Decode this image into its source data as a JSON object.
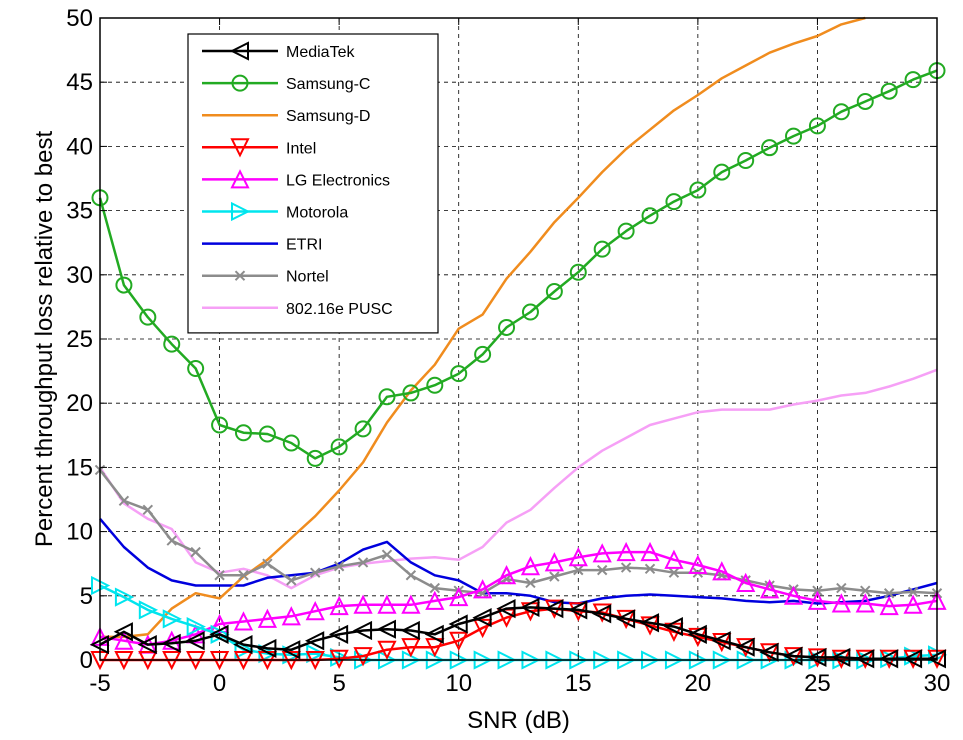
{
  "chart_data": {
    "type": "line",
    "title": "",
    "xlabel": "SNR (dB)",
    "ylabel": "Percent throughput loss relative to best",
    "xlim": [
      -5,
      30
    ],
    "ylim": [
      0,
      50
    ],
    "xticks": [
      -5,
      0,
      5,
      10,
      15,
      20,
      25,
      30
    ],
    "yticks": [
      0,
      5,
      10,
      15,
      20,
      25,
      30,
      35,
      40,
      45,
      50
    ],
    "grid": true,
    "legend_position": "top-left",
    "series": [
      {
        "name": "MediaTek",
        "color": "#000000",
        "marker": "triangle-left",
        "x": [
          -5,
          -4,
          -3,
          -2,
          -1,
          0,
          1,
          2,
          3,
          4,
          5,
          6,
          7,
          8,
          9,
          10,
          11,
          12,
          13,
          14,
          15,
          16,
          17,
          18,
          19,
          20,
          21,
          22,
          23,
          24,
          25,
          26,
          27,
          28,
          29,
          30
        ],
        "y": [
          1.2,
          2.2,
          1.2,
          1.3,
          1.5,
          2.0,
          1.2,
          0.9,
          0.8,
          1.5,
          2.0,
          2.3,
          2.4,
          2.3,
          2.0,
          2.8,
          3.3,
          4.0,
          4.1,
          4.0,
          3.9,
          3.6,
          3.2,
          2.9,
          2.6,
          2.0,
          1.5,
          1.0,
          0.6,
          0.3,
          0.2,
          0.2,
          0.1,
          0.1,
          0.1,
          0.1
        ]
      },
      {
        "name": "Samsung-C",
        "color": "#22aa22",
        "marker": "circle",
        "x": [
          -5,
          -4,
          -3,
          -2,
          -1,
          0,
          1,
          2,
          3,
          4,
          5,
          6,
          7,
          8,
          9,
          10,
          11,
          12,
          13,
          14,
          15,
          16,
          17,
          18,
          19,
          20,
          21,
          22,
          23,
          24,
          25,
          26,
          27,
          28,
          29,
          30
        ],
        "y": [
          36.0,
          29.2,
          26.7,
          24.6,
          22.7,
          18.3,
          17.7,
          17.6,
          16.9,
          15.7,
          16.6,
          18.0,
          20.5,
          20.8,
          21.4,
          22.3,
          23.8,
          25.9,
          27.1,
          28.7,
          30.2,
          32.0,
          33.4,
          34.6,
          35.7,
          36.6,
          38.0,
          38.9,
          39.9,
          40.8,
          41.6,
          42.7,
          43.5,
          44.3,
          45.2,
          45.9
        ]
      },
      {
        "name": "Samsung-D",
        "color": "#f08c1e",
        "marker": "none",
        "x": [
          -5,
          -4,
          -3,
          -2,
          -1,
          0,
          1,
          2,
          3,
          4,
          5,
          6,
          7,
          8,
          9,
          10,
          11,
          12,
          13,
          14,
          15,
          16,
          17,
          18,
          19,
          20,
          21,
          22,
          23,
          24,
          25,
          26,
          27
        ],
        "y": [
          1.8,
          1.8,
          2.0,
          4.0,
          5.2,
          4.8,
          6.5,
          7.8,
          9.5,
          11.2,
          13.2,
          15.4,
          18.5,
          21.0,
          23.0,
          25.8,
          26.9,
          29.7,
          31.8,
          34.1,
          36.0,
          38.0,
          39.8,
          41.3,
          42.8,
          44.0,
          45.3,
          46.3,
          47.3,
          48.0,
          48.6,
          49.5,
          50.0
        ]
      },
      {
        "name": "Intel",
        "color": "#ff0000",
        "marker": "triangle-down",
        "x": [
          -5,
          -4,
          -3,
          -2,
          -1,
          0,
          1,
          2,
          3,
          4,
          5,
          6,
          7,
          8,
          9,
          10,
          11,
          12,
          13,
          14,
          15,
          16,
          17,
          18,
          19,
          20,
          21,
          22,
          23,
          24,
          25,
          26,
          27,
          28,
          29,
          30
        ],
        "y": [
          0,
          0,
          0,
          0,
          0,
          0,
          0,
          0,
          0,
          0,
          0.1,
          0.3,
          0.8,
          1.0,
          1.0,
          1.5,
          2.5,
          3.3,
          3.8,
          4.0,
          3.8,
          3.7,
          3.2,
          2.7,
          2.2,
          1.8,
          1.4,
          1.0,
          0.6,
          0.3,
          0.2,
          0.1,
          0.1,
          0.1,
          0.1,
          0.1
        ]
      },
      {
        "name": "LG Electronics",
        "color": "#ff00ff",
        "marker": "triangle-up",
        "x": [
          -5,
          -4,
          -3,
          -2,
          -1,
          0,
          1,
          2,
          3,
          4,
          5,
          6,
          7,
          8,
          9,
          10,
          11,
          12,
          13,
          14,
          15,
          16,
          17,
          18,
          19,
          20,
          21,
          22,
          23,
          24,
          25,
          26,
          27,
          28,
          29,
          30
        ],
        "y": [
          1.8,
          1.5,
          1.2,
          1.5,
          2.0,
          2.8,
          3.0,
          3.2,
          3.4,
          3.8,
          4.2,
          4.3,
          4.3,
          4.3,
          4.6,
          4.9,
          5.5,
          6.6,
          7.3,
          7.6,
          8.0,
          8.3,
          8.4,
          8.4,
          7.8,
          7.4,
          6.9,
          6.0,
          5.5,
          5.0,
          4.6,
          4.4,
          4.4,
          4.2,
          4.3,
          4.6
        ]
      },
      {
        "name": "Motorola",
        "color": "#00e5ee",
        "marker": "triangle-right",
        "x": [
          -5,
          -4,
          -3,
          -2,
          -1,
          0,
          1,
          2,
          3,
          4,
          5,
          6,
          7,
          8,
          9,
          10,
          11,
          12,
          13,
          14,
          15,
          16,
          17,
          18,
          19,
          20,
          21,
          22,
          23,
          24,
          25,
          26,
          27,
          28,
          29,
          30
        ],
        "y": [
          5.8,
          4.9,
          3.9,
          3.2,
          2.6,
          2.0,
          0.8,
          0.5,
          0.4,
          0.5,
          0.2,
          0,
          0,
          0,
          0,
          0,
          0,
          0,
          0,
          0,
          0,
          0,
          0,
          0,
          0,
          0,
          0,
          0,
          0,
          0,
          0,
          0,
          0,
          0.1,
          0.3,
          0.4
        ]
      },
      {
        "name": "ETRI",
        "color": "#0000dd",
        "marker": "none",
        "x": [
          -5,
          -4,
          -3,
          -2,
          -1,
          0,
          1,
          2,
          3,
          4,
          5,
          6,
          7,
          8,
          9,
          10,
          11,
          12,
          13,
          14,
          15,
          16,
          17,
          18,
          19,
          20,
          21,
          22,
          23,
          24,
          25,
          26,
          27,
          28,
          29,
          30
        ],
        "y": [
          11.0,
          8.8,
          7.2,
          6.2,
          5.8,
          5.8,
          5.8,
          6.4,
          6.6,
          6.8,
          7.5,
          8.6,
          9.2,
          7.6,
          6.6,
          6.2,
          5.2,
          5.2,
          5.0,
          4.5,
          4.4,
          4.8,
          5.0,
          5.1,
          5.0,
          4.9,
          4.8,
          4.6,
          4.5,
          4.6,
          4.4,
          4.5,
          4.6,
          5.0,
          5.5,
          6.0
        ]
      },
      {
        "name": "Nortel",
        "color": "#8c8c8c",
        "marker": "x",
        "x": [
          -5,
          -4,
          -3,
          -2,
          -1,
          0,
          1,
          2,
          3,
          4,
          5,
          6,
          7,
          8,
          9,
          10,
          11,
          12,
          13,
          14,
          15,
          16,
          17,
          18,
          19,
          20,
          21,
          22,
          23,
          24,
          25,
          26,
          27,
          28,
          29,
          30
        ],
        "y": [
          14.8,
          12.4,
          11.7,
          9.3,
          8.4,
          6.6,
          6.6,
          7.5,
          6.2,
          6.8,
          7.3,
          7.6,
          8.2,
          6.6,
          5.6,
          5.4,
          5.2,
          6.3,
          6.0,
          6.5,
          7.0,
          7.0,
          7.2,
          7.1,
          6.8,
          6.8,
          6.6,
          6.2,
          5.8,
          5.5,
          5.4,
          5.6,
          5.4,
          5.2,
          5.3,
          5.2
        ]
      },
      {
        "name": "802.16e PUSC",
        "color": "#f6a0f6",
        "marker": "none",
        "x": [
          -5,
          -4,
          -3,
          -2,
          -1,
          0,
          1,
          2,
          3,
          4,
          5,
          6,
          7,
          8,
          9,
          10,
          11,
          12,
          13,
          14,
          15,
          16,
          17,
          18,
          19,
          20,
          21,
          22,
          23,
          24,
          25,
          26,
          27,
          28,
          29,
          30
        ],
        "y": [
          15.0,
          12.2,
          11.0,
          10.2,
          7.6,
          6.8,
          7.1,
          6.6,
          5.6,
          6.6,
          7.2,
          7.5,
          7.7,
          7.9,
          8.0,
          7.8,
          8.8,
          10.7,
          11.7,
          13.4,
          15.0,
          16.3,
          17.3,
          18.3,
          18.8,
          19.3,
          19.5,
          19.5,
          19.5,
          19.9,
          20.2,
          20.6,
          20.8,
          21.3,
          21.9,
          22.6
        ]
      }
    ]
  }
}
